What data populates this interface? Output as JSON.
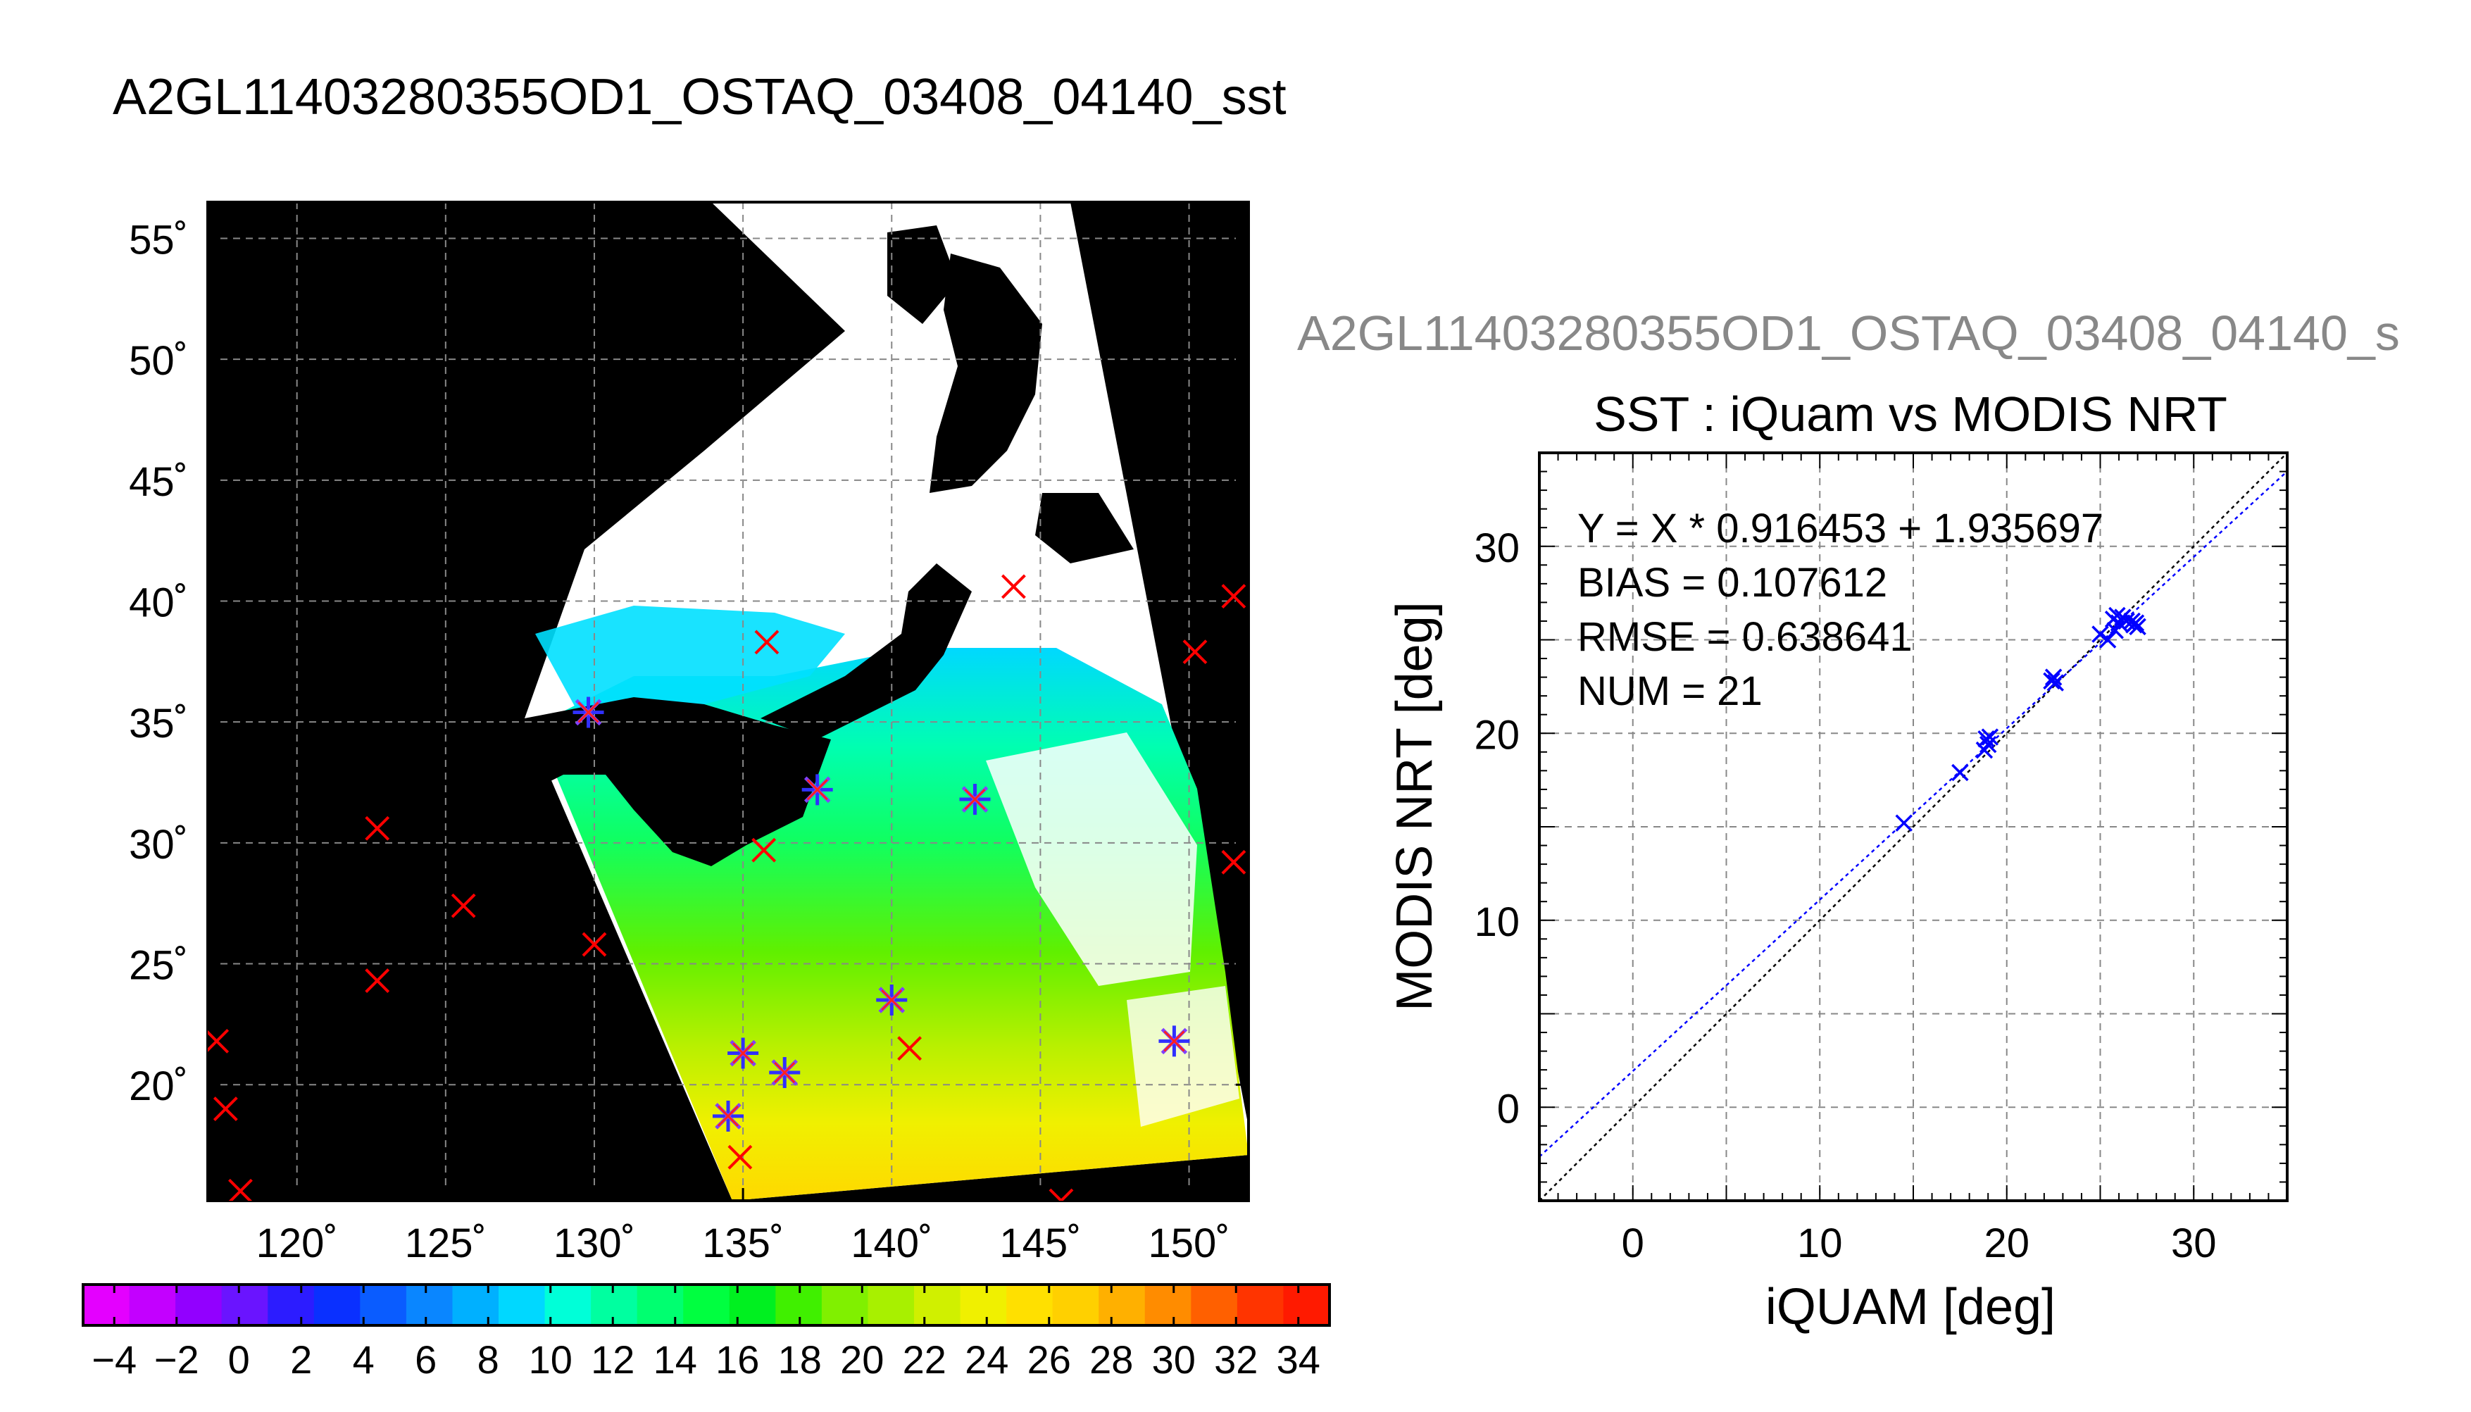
{
  "figure_title": "A2GL11403280355OD1_OSTAQ_03408_04140_sst",
  "map": {
    "lat_labels": [
      "55˚",
      "50˚",
      "45˚",
      "40˚",
      "35˚",
      "30˚",
      "25˚",
      "20˚"
    ],
    "lat_values": [
      55,
      50,
      45,
      40,
      35,
      30,
      25,
      20
    ],
    "lon_labels": [
      "120˚",
      "125˚",
      "130˚",
      "135˚",
      "140˚",
      "145˚",
      "150˚"
    ],
    "lon_values": [
      120,
      125,
      130,
      135,
      140,
      145,
      150
    ],
    "lon_range": [
      117,
      152
    ],
    "lat_range": [
      15.2,
      56.5
    ],
    "land_color": "#000000",
    "cloud_color": "#ffffff",
    "grid": true,
    "matched_points": [
      {
        "lon": 129.8,
        "lat": 35.4
      },
      {
        "lon": 137.5,
        "lat": 32.2
      },
      {
        "lon": 142.8,
        "lat": 31.8
      },
      {
        "lon": 140.0,
        "lat": 23.5
      },
      {
        "lon": 135.0,
        "lat": 21.3
      },
      {
        "lon": 136.4,
        "lat": 20.5
      },
      {
        "lon": 134.5,
        "lat": 18.7
      },
      {
        "lon": 149.5,
        "lat": 21.8
      }
    ],
    "unmatched_points": [
      {
        "lon": 135.8,
        "lat": 38.3
      },
      {
        "lon": 144.1,
        "lat": 40.6
      },
      {
        "lon": 151.5,
        "lat": 40.2
      },
      {
        "lon": 150.2,
        "lat": 37.9
      },
      {
        "lon": 151.5,
        "lat": 29.2
      },
      {
        "lon": 135.7,
        "lat": 29.7
      },
      {
        "lon": 122.7,
        "lat": 30.6
      },
      {
        "lon": 125.6,
        "lat": 27.4
      },
      {
        "lon": 130.0,
        "lat": 25.8
      },
      {
        "lon": 122.7,
        "lat": 24.3
      },
      {
        "lon": 140.6,
        "lat": 21.5
      },
      {
        "lon": 117.3,
        "lat": 21.8
      },
      {
        "lon": 117.6,
        "lat": 19.0
      },
      {
        "lon": 118.1,
        "lat": 15.6
      },
      {
        "lon": 134.9,
        "lat": 17.0
      },
      {
        "lon": 145.7,
        "lat": 15.2
      }
    ]
  },
  "colorbar": {
    "tick_labels": [
      "−4",
      "−2",
      "0",
      "2",
      "4",
      "6",
      "8",
      "10",
      "12",
      "14",
      "16",
      "18",
      "20",
      "22",
      "24",
      "26",
      "28",
      "30",
      "32",
      "34"
    ],
    "min": -5,
    "max": 35,
    "colors": [
      "#e400ff",
      "#c300ff",
      "#9200ff",
      "#6a14ff",
      "#2c1cff",
      "#0a30ff",
      "#0a5cff",
      "#0a86ff",
      "#00b0ff",
      "#00d8ff",
      "#00ffd8",
      "#00ffa0",
      "#00ff70",
      "#00ff40",
      "#00f020",
      "#40f000",
      "#80f000",
      "#a8f000",
      "#d0f000",
      "#f0f000",
      "#ffe000",
      "#ffd000",
      "#ffb000",
      "#ff8c00",
      "#ff6000",
      "#ff3400",
      "#ff1a00"
    ]
  },
  "scatter_header": "A2GL11403280355OD1_OSTAQ_03408_04140_s",
  "chart_data": {
    "type": "scatter",
    "title": "SST : iQuam vs MODIS NRT",
    "xlabel": "iQUAM [deg]",
    "ylabel": "MODIS NRT [deg]",
    "xlim": [
      -5,
      35
    ],
    "ylim": [
      -5,
      35
    ],
    "xticks": [
      0,
      10,
      20,
      30
    ],
    "yticks": [
      0,
      10,
      20,
      30
    ],
    "grid": true,
    "stats": [
      "Y = X * 0.916453 + 1.935697",
      "BIAS = 0.107612",
      "RMSE = 0.638641",
      "NUM = 21"
    ],
    "fit": {
      "slope": 0.916453,
      "intercept": 1.935697
    },
    "series": [
      {
        "marker": "x",
        "color": "#0000ff",
        "points": [
          {
            "x": 14.5,
            "y": 15.2
          },
          {
            "x": 17.5,
            "y": 17.9
          },
          {
            "x": 18.8,
            "y": 19.1
          },
          {
            "x": 18.9,
            "y": 19.7
          },
          {
            "x": 19.0,
            "y": 19.4
          },
          {
            "x": 19.1,
            "y": 19.8
          },
          {
            "x": 22.4,
            "y": 22.8
          },
          {
            "x": 22.6,
            "y": 22.7
          },
          {
            "x": 22.5,
            "y": 23.0
          },
          {
            "x": 25.0,
            "y": 25.3
          },
          {
            "x": 25.4,
            "y": 25.0
          },
          {
            "x": 25.7,
            "y": 26.1
          },
          {
            "x": 25.9,
            "y": 26.3
          },
          {
            "x": 26.0,
            "y": 25.9
          },
          {
            "x": 26.2,
            "y": 26.2
          },
          {
            "x": 26.4,
            "y": 26.0
          },
          {
            "x": 26.8,
            "y": 25.8
          },
          {
            "x": 26.9,
            "y": 25.9
          },
          {
            "x": 27.0,
            "y": 25.7
          },
          {
            "x": 26.7,
            "y": 26.0
          },
          {
            "x": 25.8,
            "y": 25.5
          }
        ]
      }
    ]
  }
}
